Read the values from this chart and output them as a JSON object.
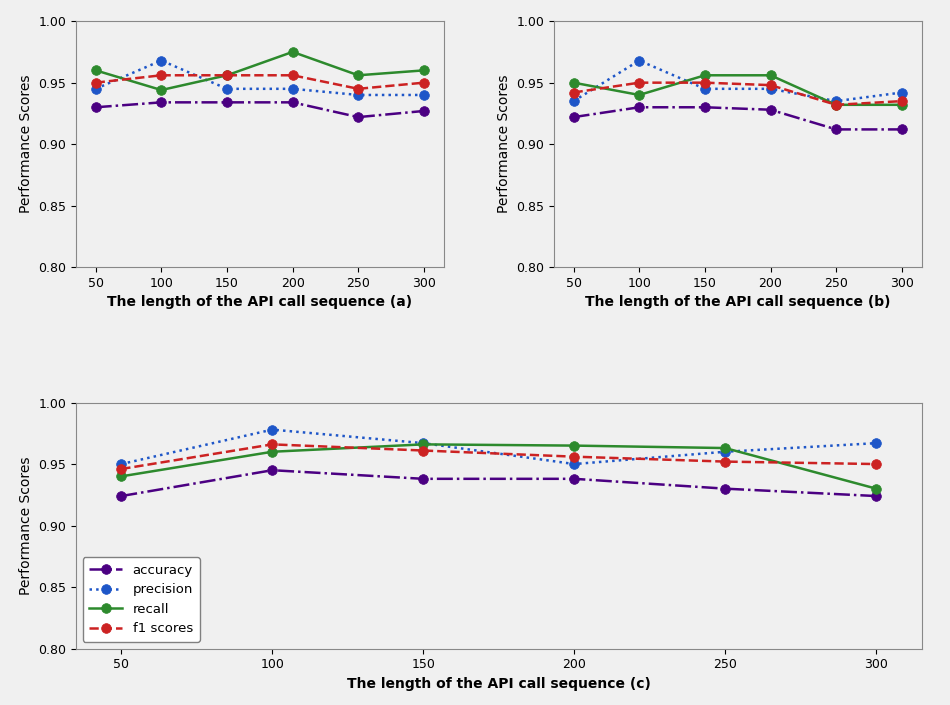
{
  "x": [
    50,
    100,
    150,
    200,
    250,
    300
  ],
  "chart_a": {
    "accuracy": [
      0.93,
      0.934,
      0.934,
      0.934,
      0.922,
      0.927
    ],
    "precision": [
      0.945,
      0.968,
      0.945,
      0.945,
      0.94,
      0.94
    ],
    "recall": [
      0.96,
      0.944,
      0.956,
      0.975,
      0.956,
      0.96
    ],
    "f1": [
      0.95,
      0.956,
      0.956,
      0.956,
      0.945,
      0.95
    ]
  },
  "chart_b": {
    "accuracy": [
      0.922,
      0.93,
      0.93,
      0.928,
      0.912,
      0.912
    ],
    "precision": [
      0.935,
      0.968,
      0.945,
      0.945,
      0.935,
      0.942
    ],
    "recall": [
      0.95,
      0.94,
      0.956,
      0.956,
      0.932,
      0.932
    ],
    "f1": [
      0.942,
      0.95,
      0.95,
      0.948,
      0.932,
      0.935
    ]
  },
  "chart_c": {
    "accuracy": [
      0.924,
      0.945,
      0.938,
      0.938,
      0.93,
      0.924
    ],
    "precision": [
      0.95,
      0.978,
      0.967,
      0.95,
      0.96,
      0.967
    ],
    "recall": [
      0.94,
      0.96,
      0.966,
      0.965,
      0.963,
      0.93
    ],
    "f1": [
      0.946,
      0.966,
      0.961,
      0.956,
      0.952,
      0.95
    ]
  },
  "colors": {
    "accuracy": "#4b0082",
    "precision": "#1e56c8",
    "recall": "#2d8a2d",
    "f1": "#cc2222"
  },
  "legend_labels": [
    "accuracy",
    "precision",
    "recall",
    "f1 scores"
  ],
  "ylabel": "Performance Scores",
  "xlabel_a": "The length of the API call sequence (a)",
  "xlabel_b": "The length of the API call sequence (b)",
  "xlabel_c": "The length of the API call sequence (c)",
  "ylim": [
    0.8,
    1.0
  ],
  "yticks": [
    0.8,
    0.85,
    0.9,
    0.95,
    1.0
  ],
  "bg_color": "#f0f0f0"
}
